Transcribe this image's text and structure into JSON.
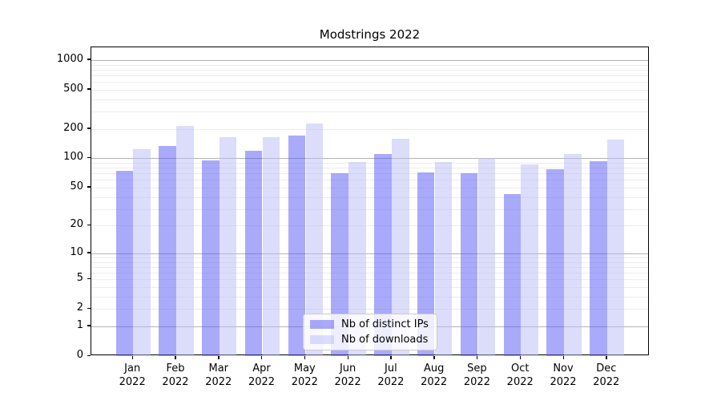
{
  "chart_data": {
    "type": "bar",
    "title": "Modstrings 2022",
    "categories": [
      "Jan",
      "Feb",
      "Mar",
      "Apr",
      "May",
      "Jun",
      "Jul",
      "Aug",
      "Sep",
      "Oct",
      "Nov",
      "Dec"
    ],
    "year_label": "2022",
    "series": [
      {
        "name": "Nb of distinct IPs",
        "color": "#5555f5",
        "alpha": 0.5,
        "values": [
          75,
          135,
          95,
          120,
          170,
          70,
          110,
          72,
          70,
          43,
          78,
          93
        ]
      },
      {
        "name": "Nb of downloads",
        "color": "#b9b9f7",
        "alpha": 0.5,
        "values": [
          125,
          213,
          166,
          166,
          229,
          91,
          159,
          92,
          100,
          87,
          111,
          155
        ]
      }
    ],
    "yscale": "log1p",
    "ylim": [
      0,
      1350
    ],
    "ytick_labels": [
      "1000",
      "500",
      "200",
      "100",
      "50",
      "20",
      "10",
      "5",
      "2",
      "1",
      "0"
    ],
    "grid": "both",
    "legend_position": "lower center",
    "colors": {
      "major_grid": "#b3b3b3",
      "minor_grid": "#ececec",
      "axis": "#000000",
      "background": "#ffffff"
    }
  }
}
